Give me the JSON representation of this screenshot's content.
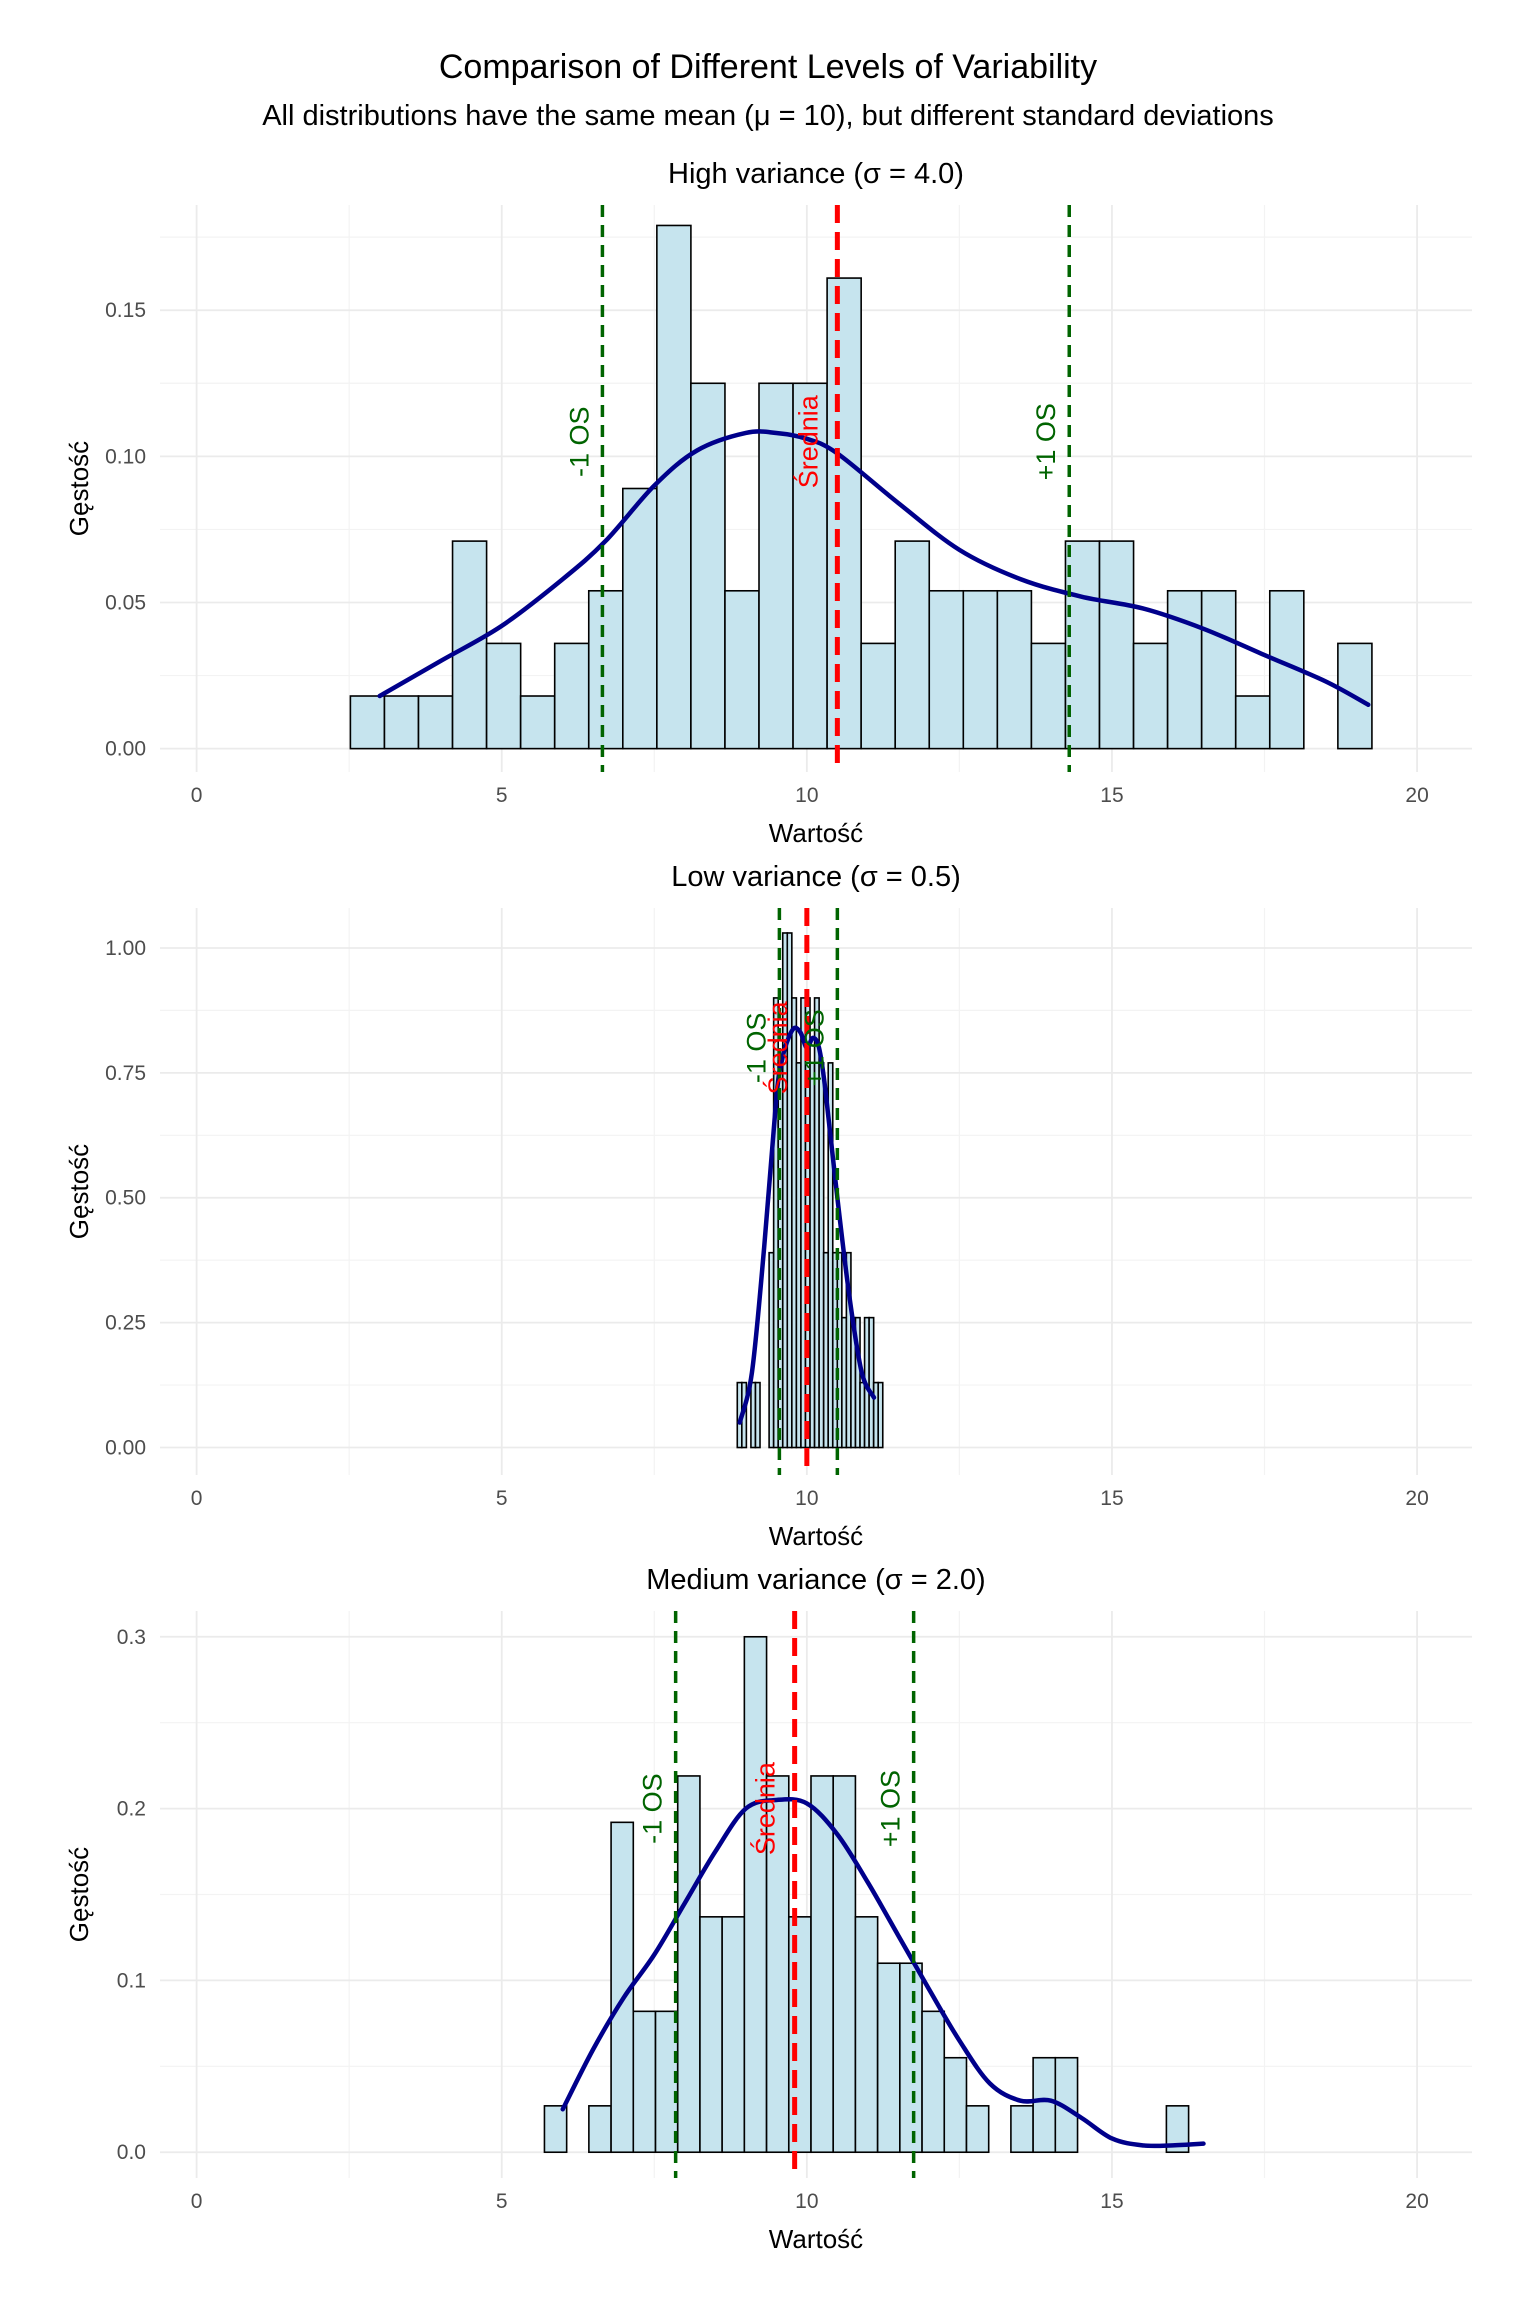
{
  "figure": {
    "title": "Comparison of Different Levels of Variability",
    "subtitle": "All distributions have the same mean (μ = 10), but different standard deviations"
  },
  "colors": {
    "bar_fill": "#c6e4ee",
    "bar_stroke": "#000000",
    "density": "#00008b",
    "mean_line": "#ff0000",
    "sd_line": "#006400",
    "grid": "#ebebeb"
  },
  "chart_data": [
    {
      "type": "histogram",
      "title": "High variance (σ = 4.0)",
      "xlabel": "Wartość",
      "ylabel": "Gęstość",
      "xlim": [
        -0.6,
        20.9
      ],
      "ylim": [
        -0.008,
        0.186
      ],
      "xticks": [
        0,
        5,
        10,
        15,
        20
      ],
      "yticks": [
        0.0,
        0.05,
        0.1,
        0.15
      ],
      "ytick_labels": [
        "0.00",
        "0.05",
        "0.10",
        "0.15"
      ],
      "grid": true,
      "bin_start": 2.52,
      "bin_width": 0.558,
      "bar_values": [
        0.018,
        0.018,
        0.018,
        0.071,
        0.036,
        0.018,
        0.036,
        0.054,
        0.089,
        0.179,
        0.125,
        0.054,
        0.125,
        0.125,
        0.161,
        0.036,
        0.071,
        0.054,
        0.054,
        0.054,
        0.036,
        0.071,
        0.071,
        0.036,
        0.054,
        0.054,
        0.018,
        0.054,
        0.0,
        0.036
      ],
      "density": {
        "x": [
          3.0,
          4.0,
          5.0,
          6.0,
          6.7,
          7.5,
          8.2,
          9.0,
          9.5,
          10.0,
          10.5,
          11.5,
          12.5,
          13.5,
          14.5,
          15.5,
          16.5,
          17.5,
          18.5,
          19.2
        ],
        "y": [
          0.018,
          0.03,
          0.042,
          0.058,
          0.071,
          0.09,
          0.102,
          0.108,
          0.108,
          0.106,
          0.101,
          0.084,
          0.068,
          0.058,
          0.052,
          0.048,
          0.041,
          0.032,
          0.023,
          0.015
        ]
      },
      "mean": 10.5,
      "sd_minus": 6.65,
      "sd_plus": 14.3,
      "annotations": {
        "mean": "Średnia",
        "minus_sd": "-1 OS",
        "plus_sd": "+1 OS"
      },
      "label_y": 0.105
    },
    {
      "type": "histogram",
      "title": "Low variance (σ = 0.5)",
      "xlabel": "Wartość",
      "ylabel": "Gęstość",
      "xlim": [
        -0.6,
        20.9
      ],
      "ylim": [
        -0.055,
        1.08
      ],
      "xticks": [
        0,
        5,
        10,
        15,
        20
      ],
      "yticks": [
        0.0,
        0.25,
        0.5,
        0.75,
        1.0
      ],
      "ytick_labels": [
        "0.00",
        "0.25",
        "0.50",
        "0.75",
        "1.00"
      ],
      "grid": true,
      "bin_start": 8.86,
      "bin_width": 0.0745,
      "bar_values": [
        0.13,
        0.13,
        0.0,
        0.13,
        0.13,
        0.0,
        0.0,
        0.39,
        0.9,
        0.77,
        1.03,
        1.03,
        0.9,
        0.77,
        0.9,
        0.9,
        0.77,
        0.9,
        0.77,
        0.39,
        0.77,
        0.39,
        0.39,
        0.26,
        0.39,
        0.26,
        0.26,
        0.13,
        0.26,
        0.26,
        0.13,
        0.13
      ],
      "density": {
        "x": [
          8.9,
          9.1,
          9.3,
          9.5,
          9.6,
          9.7,
          9.8,
          9.9,
          10.0,
          10.1,
          10.2,
          10.3,
          10.5,
          10.7,
          10.9,
          11.1
        ],
        "y": [
          0.05,
          0.15,
          0.4,
          0.7,
          0.78,
          0.82,
          0.84,
          0.83,
          0.8,
          0.82,
          0.8,
          0.72,
          0.5,
          0.3,
          0.15,
          0.1
        ]
      },
      "mean": 10.0,
      "sd_minus": 9.55,
      "sd_plus": 10.5,
      "annotations": {
        "mean": "Średnia",
        "minus_sd": "-1 OS",
        "plus_sd": "+1 OS"
      },
      "label_y": 0.8
    },
    {
      "type": "histogram",
      "title": "Medium variance (σ = 2.0)",
      "xlabel": "Wartość",
      "ylabel": "Gęstość",
      "xlim": [
        -0.6,
        20.9
      ],
      "ylim": [
        -0.015,
        0.315
      ],
      "xticks": [
        0,
        5,
        10,
        15,
        20
      ],
      "yticks": [
        0.0,
        0.1,
        0.2,
        0.3
      ],
      "ytick_labels": [
        "0.0",
        "0.1",
        "0.2",
        "0.3"
      ],
      "grid": true,
      "bin_start": 5.7,
      "bin_width": 0.364,
      "bar_values": [
        0.027,
        0.0,
        0.027,
        0.192,
        0.082,
        0.082,
        0.219,
        0.137,
        0.137,
        0.3,
        0.219,
        0.137,
        0.219,
        0.219,
        0.137,
        0.11,
        0.11,
        0.082,
        0.055,
        0.027,
        0.0,
        0.027,
        0.055,
        0.055,
        0.0,
        0.0,
        0.0,
        0.0,
        0.027
      ],
      "density": {
        "x": [
          6.0,
          6.5,
          7.0,
          7.5,
          8.0,
          8.5,
          9.0,
          9.5,
          10.0,
          10.5,
          11.0,
          11.5,
          12.0,
          12.5,
          13.0,
          13.5,
          14.0,
          14.5,
          15.0,
          15.5,
          16.0,
          16.5
        ],
        "y": [
          0.025,
          0.06,
          0.09,
          0.115,
          0.145,
          0.175,
          0.2,
          0.205,
          0.203,
          0.185,
          0.157,
          0.126,
          0.095,
          0.065,
          0.04,
          0.03,
          0.03,
          0.02,
          0.008,
          0.004,
          0.004,
          0.005
        ]
      },
      "mean": 9.8,
      "sd_minus": 7.85,
      "sd_plus": 11.75,
      "annotations": {
        "mean": "Średnia",
        "minus_sd": "-1 OS",
        "plus_sd": "+1 OS"
      },
      "label_y": 0.2
    }
  ]
}
